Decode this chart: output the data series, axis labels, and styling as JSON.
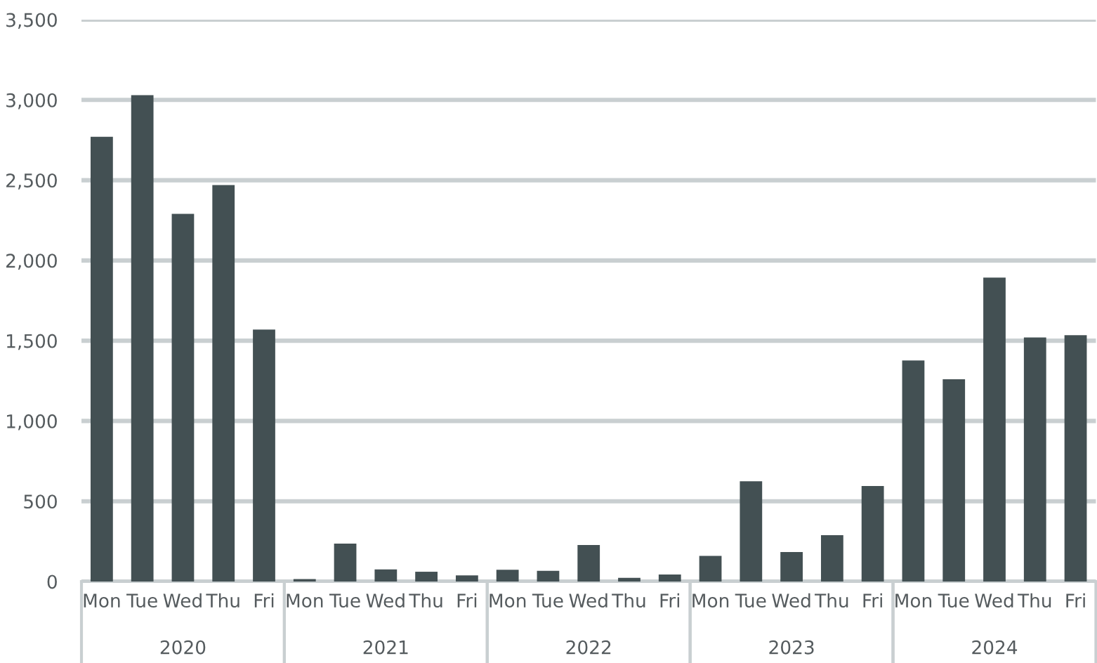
{
  "chart_data": {
    "type": "bar",
    "categories": [
      "Mon",
      "Tue",
      "Wed",
      "Thu",
      "Fri",
      "Mon",
      "Tue",
      "Wed",
      "Thu",
      "Fri",
      "Mon",
      "Tue",
      "Wed",
      "Thu",
      "Fri",
      "Mon",
      "Tue",
      "Wed",
      "Thu",
      "Fri",
      "Mon",
      "Tue",
      "Wed",
      "Thu",
      "Fri"
    ],
    "values": [
      2770,
      3030,
      2290,
      2470,
      1570,
      15,
      236,
      76,
      61,
      38,
      73,
      67,
      228,
      23,
      44,
      160,
      624,
      184,
      289,
      595,
      1377,
      1260,
      1893,
      1520,
      1534
    ],
    "color": "#435053",
    "annotations": [
      "2020",
      "2021",
      "2022",
      "2023",
      "2024"
    ],
    "ylim": [
      0,
      3500
    ],
    "yticks": [
      0,
      500,
      {
        "value": 1000,
        "label": "1,000"
      },
      {
        "value": 1500,
        "label": "1,500"
      },
      {
        "value": 2000,
        "label": "2,000"
      },
      {
        "value": 2500,
        "label": "2,500"
      },
      {
        "value": 3000,
        "label": "3,000"
      },
      {
        "value": 3500,
        "label": "3,500"
      }
    ],
    "grid": "y"
  }
}
